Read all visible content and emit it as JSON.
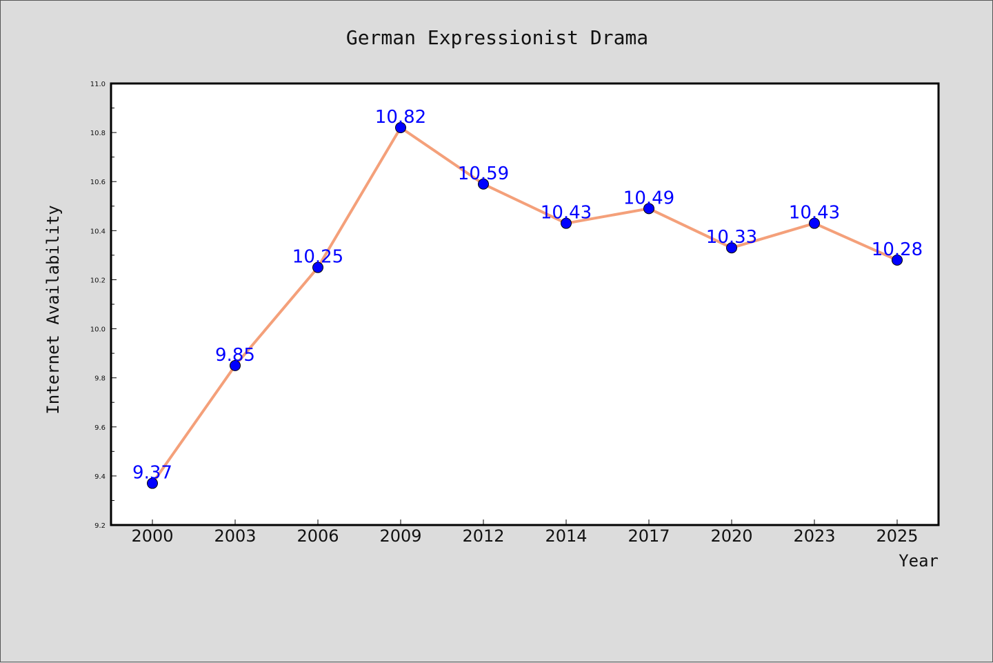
{
  "chart_data": {
    "type": "line",
    "title": "German Expressionist Drama",
    "xlabel": "Year",
    "ylabel": "Internet Availability",
    "categories": [
      "2000",
      "2003",
      "2006",
      "2009",
      "2012",
      "2014",
      "2017",
      "2020",
      "2023",
      "2025"
    ],
    "series": [
      {
        "values": [
          9.37,
          9.85,
          10.25,
          10.82,
          10.59,
          10.43,
          10.49,
          10.33,
          10.43,
          10.28
        ],
        "line_color": "#f4a07a",
        "marker_color": "#0000ff",
        "label_color": "#0000ff"
      }
    ],
    "data_labels": [
      "9.37",
      "9.85",
      "10.25",
      "10.82",
      "10.59",
      "10.43",
      "10.49",
      "10.33",
      "10.43",
      "10.28"
    ],
    "ylim": [
      9.2,
      11.0
    ],
    "yticks": [
      9.2,
      9.4,
      9.6,
      9.8,
      10.0,
      10.2,
      10.4,
      10.6,
      10.8,
      11.0
    ],
    "ytick_labels": [
      "9.2",
      "9.4",
      "9.6",
      "9.8",
      "10.0",
      "10.2",
      "10.4",
      "10.6",
      "10.8",
      "11.0"
    ],
    "grid": false,
    "legend": "none"
  }
}
